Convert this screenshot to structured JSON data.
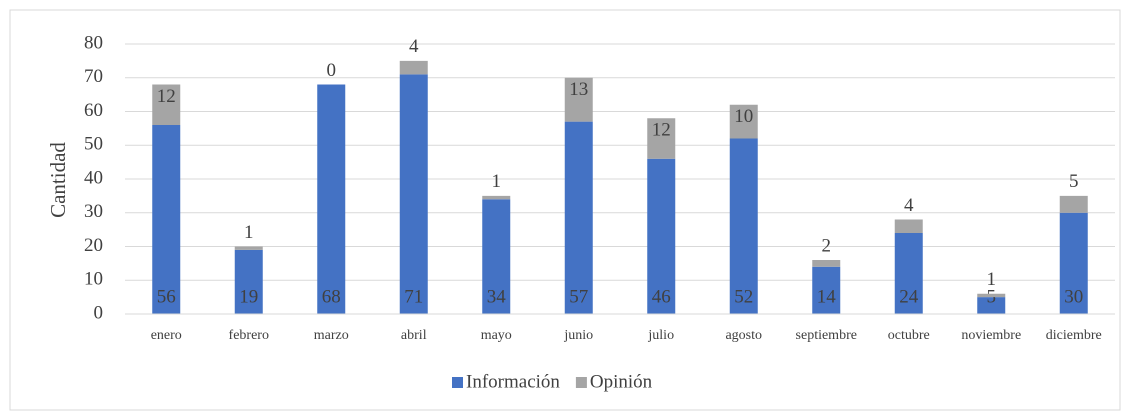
{
  "chart_data": {
    "type": "stacked_bar",
    "y_label": "Cantidad",
    "categories": [
      "enero",
      "febrero",
      "marzo",
      "abril",
      "mayo",
      "junio",
      "julio",
      "agosto",
      "septiembre",
      "octubre",
      "noviembre",
      "diciembre"
    ],
    "series": [
      {
        "name": "Información",
        "color": "#4472c4",
        "values": [
          56,
          19,
          68,
          71,
          34,
          57,
          46,
          52,
          14,
          24,
          5,
          30
        ]
      },
      {
        "name": "Opinión",
        "color": "#a5a5a5",
        "values": [
          12,
          1,
          0,
          4,
          1,
          13,
          12,
          10,
          2,
          4,
          1,
          5
        ]
      }
    ],
    "ylim": [
      0,
      80
    ],
    "yticks": [
      0,
      10,
      20,
      30,
      40,
      50,
      60,
      70,
      80
    ],
    "grid": true,
    "legend": "bottom"
  }
}
